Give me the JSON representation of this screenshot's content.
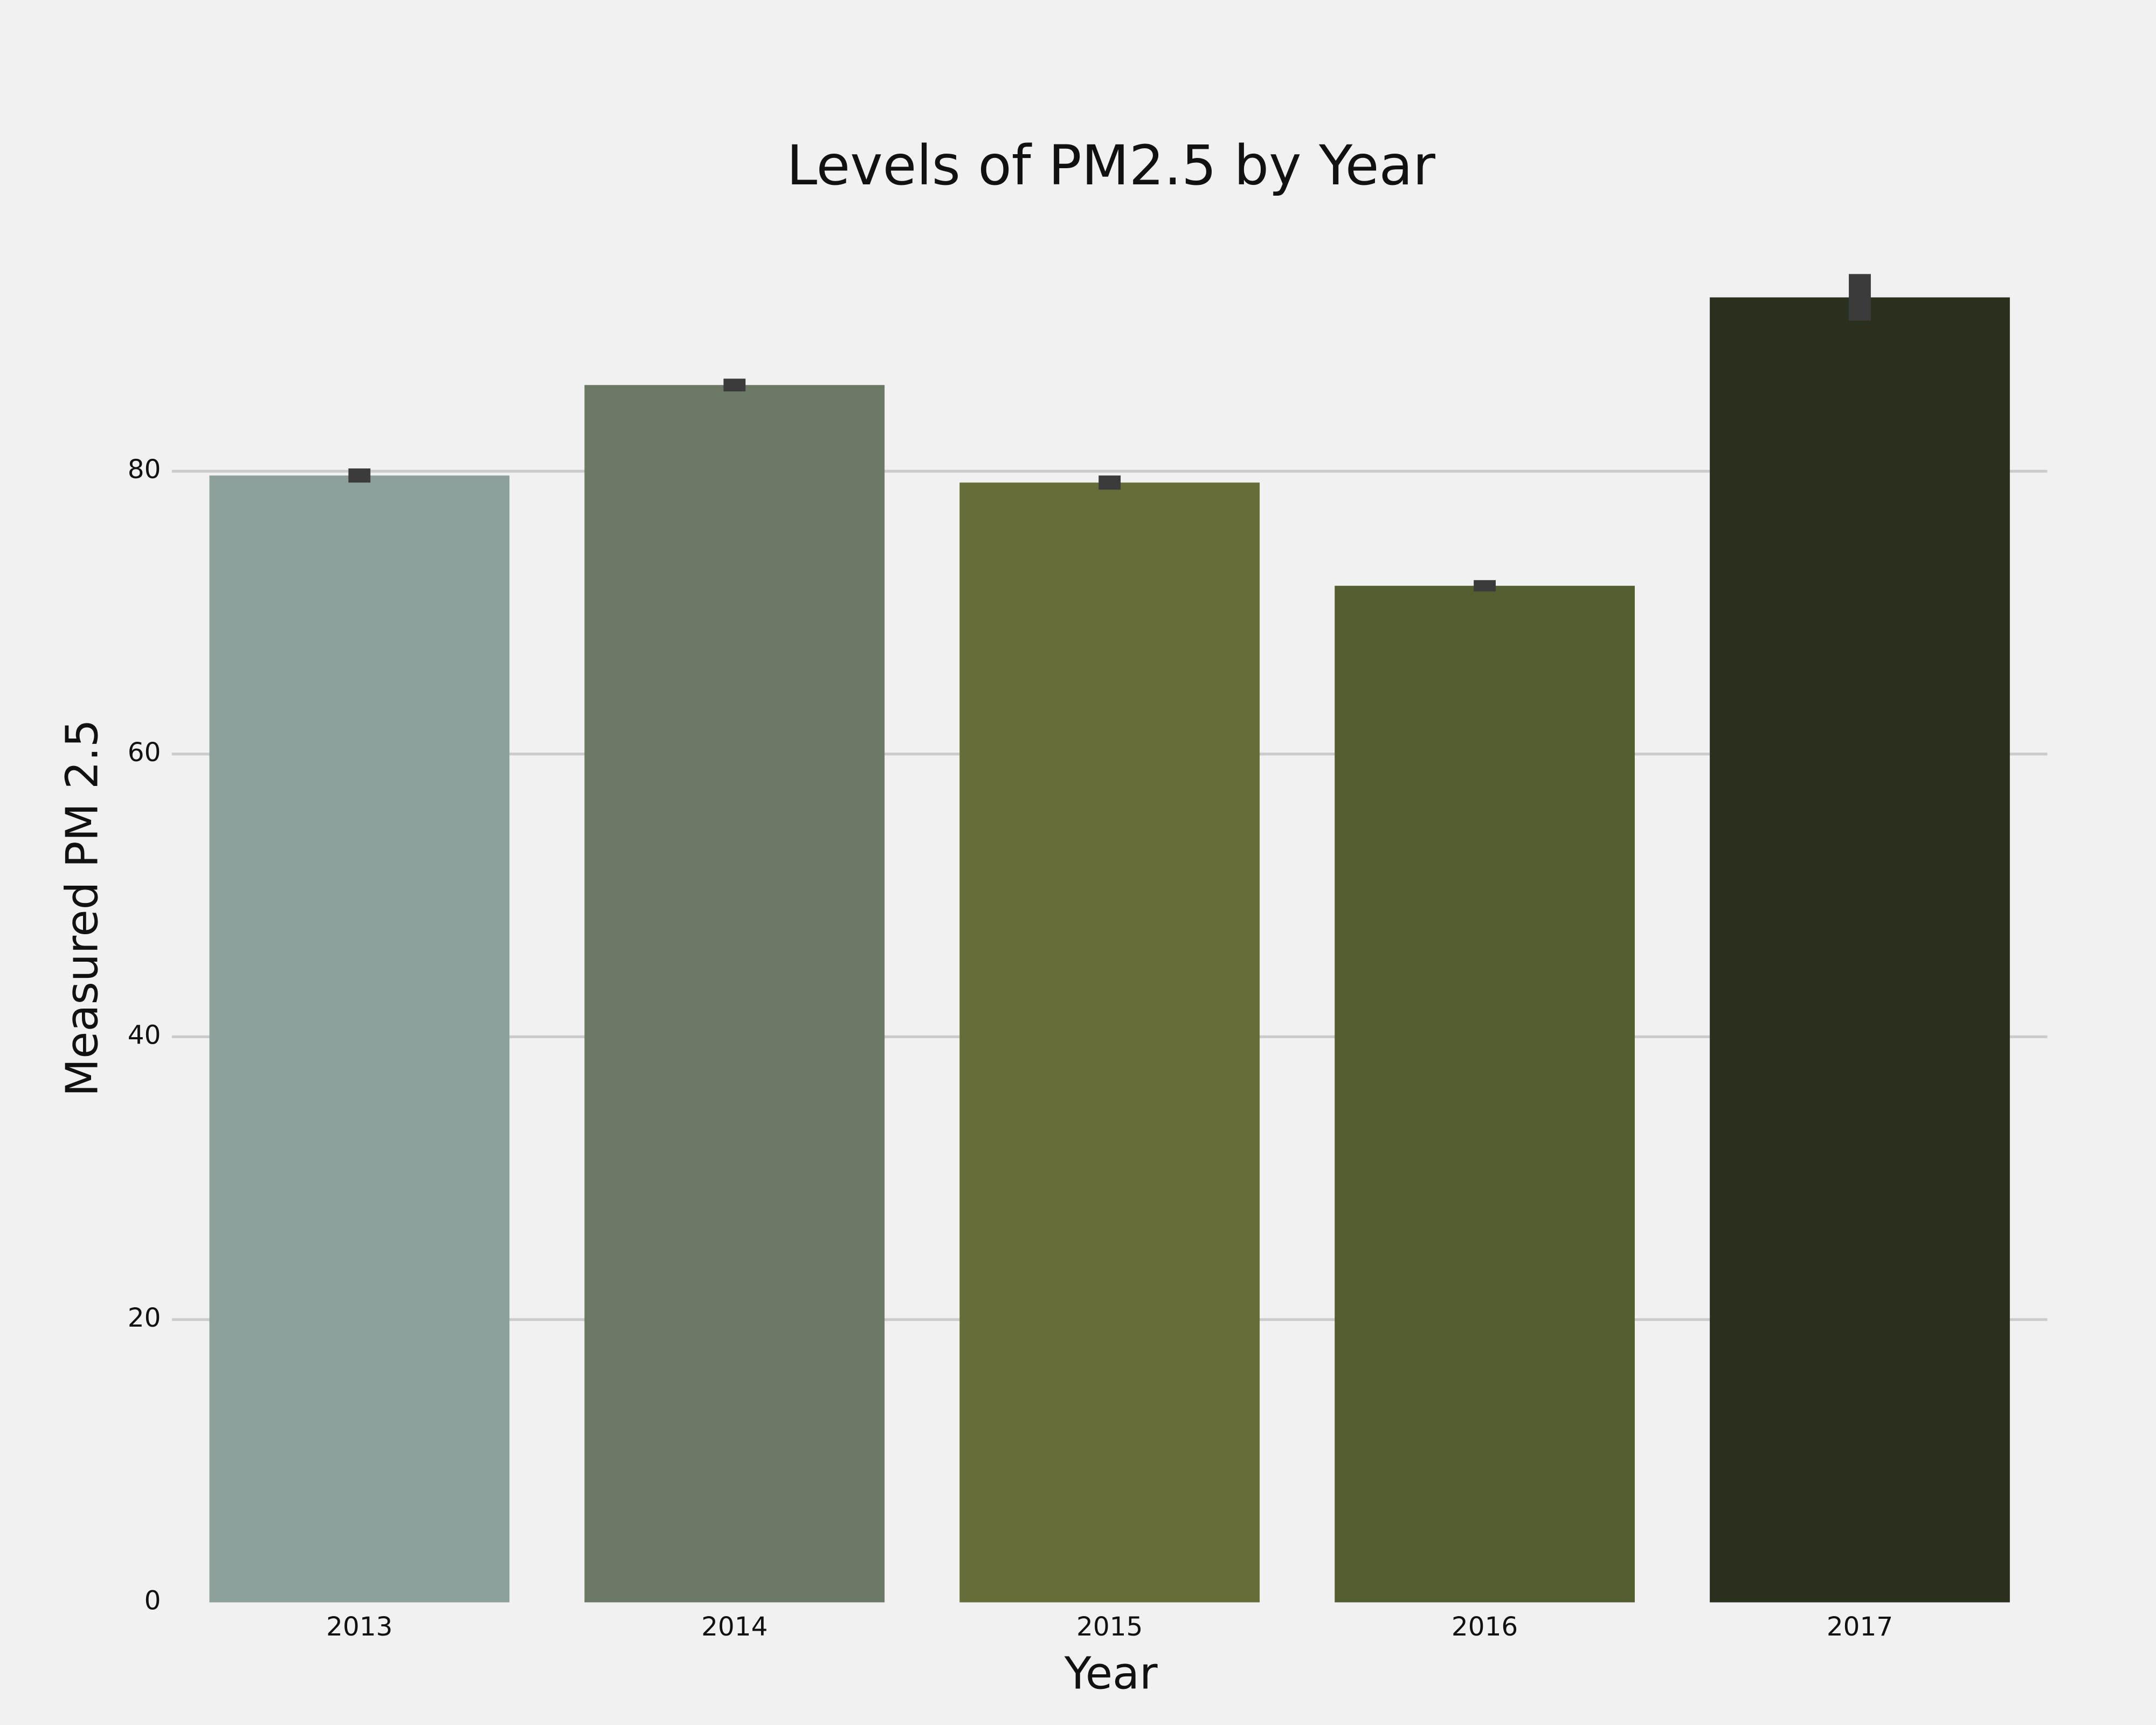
{
  "chart_data": {
    "type": "bar",
    "title": "Levels of PM2.5 by Year",
    "x_label": "Year",
    "y_label": "Measured PM 2.5",
    "categories": [
      "2013",
      "2014",
      "2015",
      "2016",
      "2017"
    ],
    "values": [
      79.7,
      86.1,
      79.2,
      71.9,
      92.3
    ],
    "errors": [
      0.5,
      0.45,
      0.5,
      0.4,
      1.65
    ],
    "colors": [
      "#8da09b",
      "#6b7866",
      "#666d39",
      "#525e30",
      "#29311e"
    ],
    "error_color": "#3b3b3b",
    "ylim": [
      0,
      96
    ],
    "yticks": [
      0,
      20,
      40,
      60,
      80
    ],
    "grid": true
  }
}
